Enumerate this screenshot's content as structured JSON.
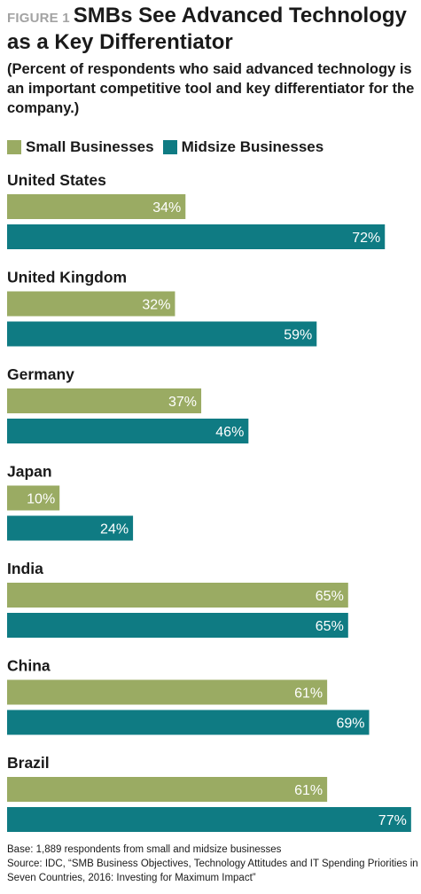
{
  "header": {
    "figure_label": "FIGURE 1",
    "title_line1": "SMBs See Advanced Technology",
    "title_line2": "as a Key Differentiator",
    "subtitle": "(Percent of respondents who said advanced technology is an important competitive tool and key differentiator for the company.)"
  },
  "colors": {
    "small": "#9aab63",
    "midsize": "#0f7b83"
  },
  "chart_data": {
    "type": "bar",
    "orientation": "horizontal",
    "categories": [
      "United States",
      "United Kingdom",
      "Germany",
      "Japan",
      "India",
      "China",
      "Brazil"
    ],
    "series": [
      {
        "name": "Small Businesses",
        "values": [
          34,
          32,
          37,
          10,
          65,
          61,
          61
        ]
      },
      {
        "name": "Midsize Businesses",
        "values": [
          72,
          59,
          46,
          24,
          65,
          69,
          77
        ]
      }
    ],
    "value_suffix": "%",
    "xlim": [
      0,
      78
    ],
    "grid": false,
    "legend": "top-left"
  },
  "footer": {
    "base": "Base: 1,889 respondents from small and midsize businesses",
    "source": "Source: IDC, “SMB Business Objectives, Technology Attitudes and IT Spending Priorities in Seven Countries, 2016: Investing for Maximum Impact”"
  }
}
